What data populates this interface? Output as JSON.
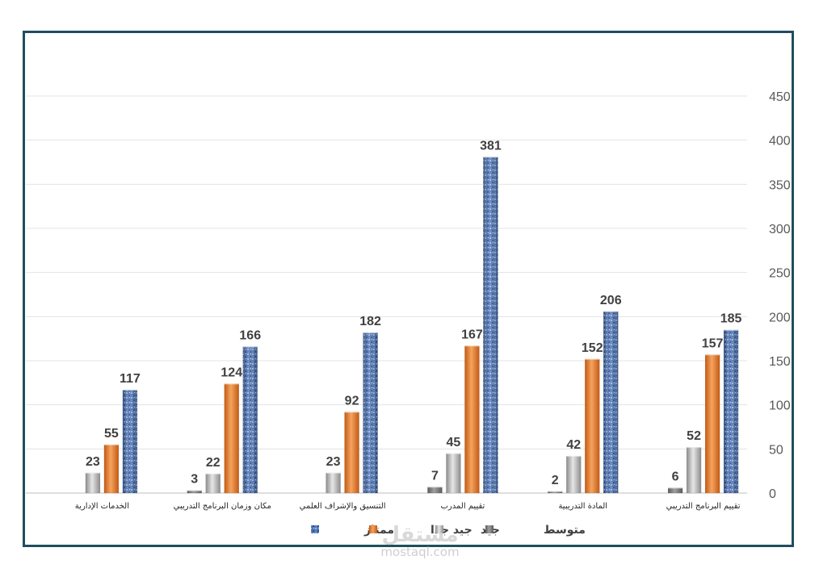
{
  "chart_data": {
    "type": "bar",
    "categories": [
      "تقييم البرنامج التدريبي",
      "المادة التدريبية",
      "تقييم المدرب",
      "التنسيق والإشراف العلمي",
      "مكان وزمان البرنامج التدريبي",
      "الخدمات الإدارية"
    ],
    "series": [
      {
        "name": "متوسط",
        "values": [
          6,
          2,
          7,
          0,
          3,
          0
        ],
        "color": "#7f7f7f",
        "labels_shown": [
          true,
          true,
          true,
          false,
          true,
          false
        ]
      },
      {
        "name": "جيد",
        "values": [
          52,
          42,
          45,
          23,
          22,
          23
        ],
        "color": "#a6a6a6",
        "labels_shown": [
          true,
          true,
          true,
          true,
          true,
          true
        ]
      },
      {
        "name": "جيد جدا",
        "values": [
          157,
          152,
          167,
          92,
          124,
          55
        ],
        "color": "#ed7d31",
        "labels_shown": [
          true,
          true,
          true,
          true,
          true,
          true
        ]
      },
      {
        "name": "ممتاز",
        "values": [
          185,
          206,
          381,
          182,
          166,
          117
        ],
        "color": "#4472c4",
        "labels_shown": [
          true,
          true,
          true,
          true,
          true,
          true
        ]
      }
    ],
    "y_ticks": [
      "0",
      "50",
      "100",
      "150",
      "200",
      "250",
      "300",
      "350",
      "400",
      "450"
    ],
    "ylim": [
      0,
      450
    ],
    "y_axis_side": "right",
    "category_order": "right-to-left",
    "grid": true,
    "legend_position": "bottom"
  },
  "watermark": {
    "arabic": "مستقل",
    "latin": "mostaql.com"
  }
}
